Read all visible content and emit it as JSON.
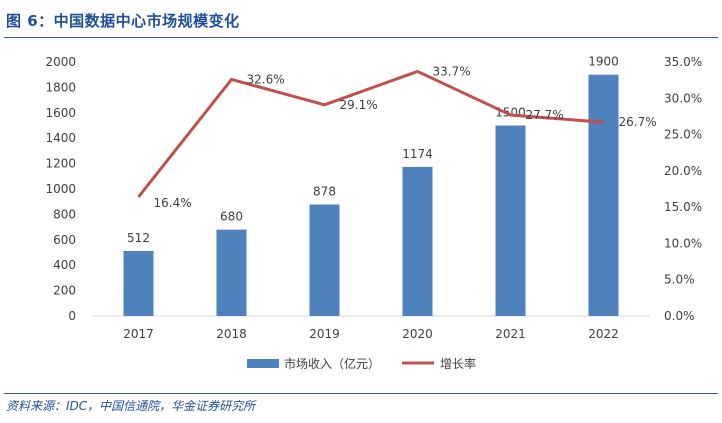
{
  "figure": {
    "title": "图 6：中国数据中心市场规模变化",
    "source": "资料来源：IDC，中国信通院，华金证券研究所"
  },
  "colors": {
    "bar": "#4f81bd",
    "line": "#c0504d",
    "title": "#1f4e9a",
    "text": "#404040"
  },
  "chart_data": {
    "type": "bar",
    "title": "",
    "xlabel": "",
    "ylabel": "",
    "categories": [
      "2017",
      "2018",
      "2019",
      "2020",
      "2021",
      "2022"
    ],
    "series": [
      {
        "name": "市场收入（亿元）",
        "type": "bar",
        "axis": "left",
        "values": [
          512,
          680,
          878,
          1174,
          1500,
          1900
        ],
        "labels": [
          "512",
          "680",
          "878",
          "1174",
          "1500",
          "1900"
        ]
      },
      {
        "name": "增长率",
        "type": "line",
        "axis": "right",
        "values": [
          16.4,
          32.6,
          29.1,
          33.7,
          27.7,
          26.7
        ],
        "labels": [
          "16.4%",
          "32.6%",
          "29.1%",
          "33.7%",
          "27.7%",
          "26.7%"
        ]
      }
    ],
    "ylim": [
      0,
      2000
    ],
    "y_ticks": [
      "0",
      "200",
      "400",
      "600",
      "800",
      "1000",
      "1200",
      "1400",
      "1600",
      "1800",
      "2000"
    ],
    "y2lim": [
      0,
      35
    ],
    "y2_ticks": [
      "0.0%",
      "5.0%",
      "10.0%",
      "15.0%",
      "20.0%",
      "25.0%",
      "30.0%",
      "35.0%"
    ],
    "grid": false,
    "legend": "bottom-center"
  }
}
